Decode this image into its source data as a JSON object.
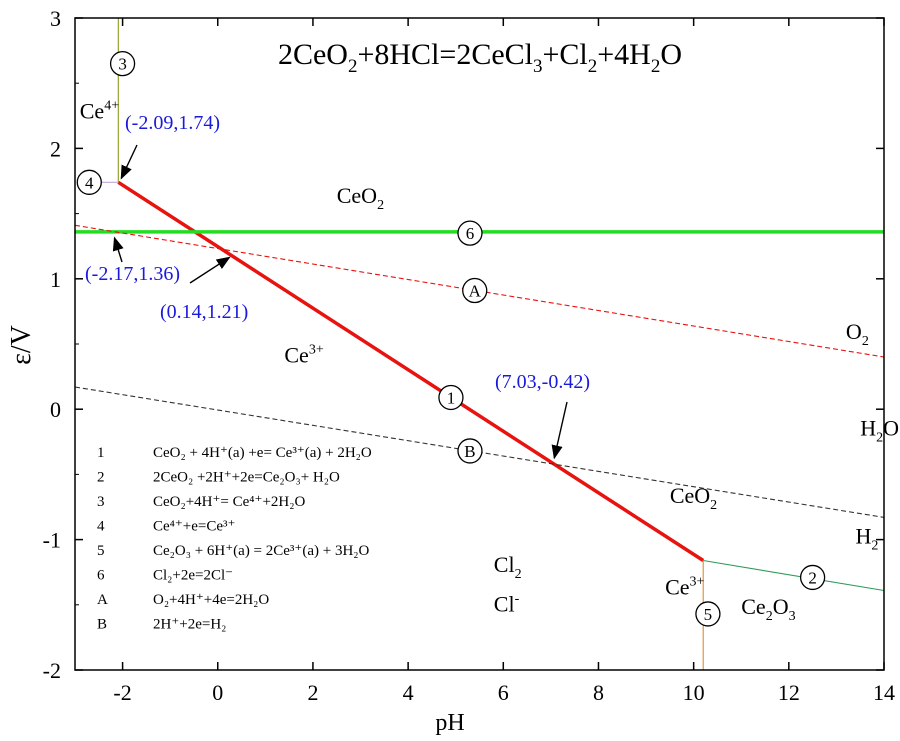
{
  "chart_data": {
    "type": "line",
    "title": "2CeO2+8HCl=2CeCl3+Cl2+4H2O",
    "title_parts": {
      "a": "2CeO",
      "b": "2",
      "c": "+8HCl=2CeCl",
      "d": "3",
      "e": "+Cl",
      "f": "2",
      "g": "+4H",
      "h": "2",
      "i": "O"
    },
    "xlabel": "pH",
    "ylabel": "ε/V",
    "xlim": [
      -3,
      14
    ],
    "ylim": [
      -2,
      3
    ],
    "x_ticks": [
      -2,
      0,
      2,
      4,
      6,
      8,
      10,
      12,
      14
    ],
    "x_tick_labels": [
      "-2",
      "0",
      "2",
      "4",
      "6",
      "8",
      "10",
      "12",
      "14"
    ],
    "y_ticks": [
      -2,
      -1,
      0,
      1,
      2,
      3
    ],
    "y_tick_labels": [
      "-2",
      "-1",
      "0",
      "1",
      "2",
      "3"
    ],
    "series": [
      {
        "name": "1",
        "style": "solid",
        "color": "#e8120f",
        "points": [
          [
            -2.09,
            1.74
          ],
          [
            10.2,
            -1.16
          ]
        ]
      },
      {
        "name": "2",
        "style": "solid",
        "color": "#2e9a5a",
        "points": [
          [
            10.2,
            -1.16
          ],
          [
            14,
            -1.39
          ]
        ]
      },
      {
        "name": "3",
        "style": "solid",
        "color": "#8a9a1a",
        "points": [
          [
            -2.09,
            1.74
          ],
          [
            -2.09,
            3
          ]
        ]
      },
      {
        "name": "4",
        "style": "solid",
        "color": "#c7a2d8",
        "points": [
          [
            -2.6,
            1.74
          ],
          [
            -2.09,
            1.74
          ]
        ]
      },
      {
        "name": "5",
        "style": "solid",
        "color": "#e08a2a",
        "points": [
          [
            10.2,
            -1.16
          ],
          [
            10.2,
            -2
          ]
        ]
      },
      {
        "name": "6",
        "style": "solid",
        "color": "#22dd22",
        "points": [
          [
            -3,
            1.36
          ],
          [
            14,
            1.36
          ]
        ]
      },
      {
        "name": "A",
        "style": "dashed",
        "color": "#e8120f",
        "points": [
          [
            -3,
            1.41
          ],
          [
            14,
            0.4
          ]
        ]
      },
      {
        "name": "B",
        "style": "dashed",
        "color": "#333333",
        "points": [
          [
            -3,
            0.17
          ],
          [
            14,
            -0.83
          ]
        ]
      }
    ],
    "series_labels": [
      {
        "id": "1",
        "x": 4.9,
        "y": 0.09
      },
      {
        "id": "2",
        "x": 12.5,
        "y": -1.29
      },
      {
        "id": "3",
        "x": -2.0,
        "y": 2.65
      },
      {
        "id": "4",
        "x": -2.7,
        "y": 1.74
      },
      {
        "id": "5",
        "x": 10.3,
        "y": -1.57
      },
      {
        "id": "6",
        "x": 5.3,
        "y": 1.35
      },
      {
        "id": "A",
        "x": 5.4,
        "y": 0.91
      },
      {
        "id": "B",
        "x": 5.3,
        "y": -0.32
      }
    ],
    "points_of_interest": [
      {
        "label": "(-2.09,1.74)",
        "x": -2.09,
        "y": 1.74
      },
      {
        "label": "(-2.17,1.36)",
        "x": -2.17,
        "y": 1.36
      },
      {
        "label": "(0.14,1.21)",
        "x": 0.14,
        "y": 1.21
      },
      {
        "label": "(7.03,-0.42)",
        "x": 7.03,
        "y": -0.42
      }
    ],
    "region_labels": [
      {
        "base": "Ce",
        "sup": "4+",
        "x": -2.9,
        "y": 2.23
      },
      {
        "base": "CeO",
        "sub": "2",
        "x": 2.5,
        "y": 1.58
      },
      {
        "base": "Ce",
        "sup": "3+",
        "x": 1.4,
        "y": 0.36
      },
      {
        "base": "O",
        "sub": "2",
        "x": 13.2,
        "y": 0.54
      },
      {
        "base": "H",
        "sub": "2",
        "after": "O",
        "x": 13.5,
        "y": -0.2
      },
      {
        "base": "CeO",
        "sub": "2",
        "x": 9.5,
        "y": -0.72
      },
      {
        "base": "H",
        "sub": "2",
        "x": 13.4,
        "y": -1.03
      },
      {
        "base": "Cl",
        "sub": "2",
        "x": 5.8,
        "y": -1.25
      },
      {
        "base": "Cl",
        "sup": "-",
        "x": 5.8,
        "y": -1.55
      },
      {
        "base": "Ce",
        "sup": "3+",
        "x": 9.4,
        "y": -1.42
      },
      {
        "base": "Ce",
        "sub": "2",
        "after": "O",
        "sub2": "3",
        "x": 11.0,
        "y": -1.57
      }
    ],
    "legend_title": "",
    "legend": [
      {
        "id": "1",
        "equation": "CeO₂ + 4H⁺(a) +e= Ce³⁺(a) + 2H₂O"
      },
      {
        "id": "2",
        "equation": "2CeO₂ +2H⁺+2e=Ce₂O₃+ H₂O"
      },
      {
        "id": "3",
        "equation": "CeO₂+4H⁺= Ce⁴⁺+2H₂O"
      },
      {
        "id": "4",
        "equation": "Ce⁴⁺+e=Ce³⁺"
      },
      {
        "id": "5",
        "equation": "Ce₂O₃ + 6H⁺(a) = 2Ce³⁺(a) + 3H₂O"
      },
      {
        "id": "6",
        "equation": "Cl₂+2e=2Cl⁻"
      },
      {
        "id": "A",
        "equation": "O₂+4H⁺+4e=2H₂O"
      },
      {
        "id": "B",
        "equation": "2H⁺+2e=H₂"
      }
    ],
    "legend_placement": "bottom-left",
    "grid": false
  },
  "colors": {
    "axis": "#000000",
    "annotation": "#1a1adc",
    "text": "#000000"
  }
}
